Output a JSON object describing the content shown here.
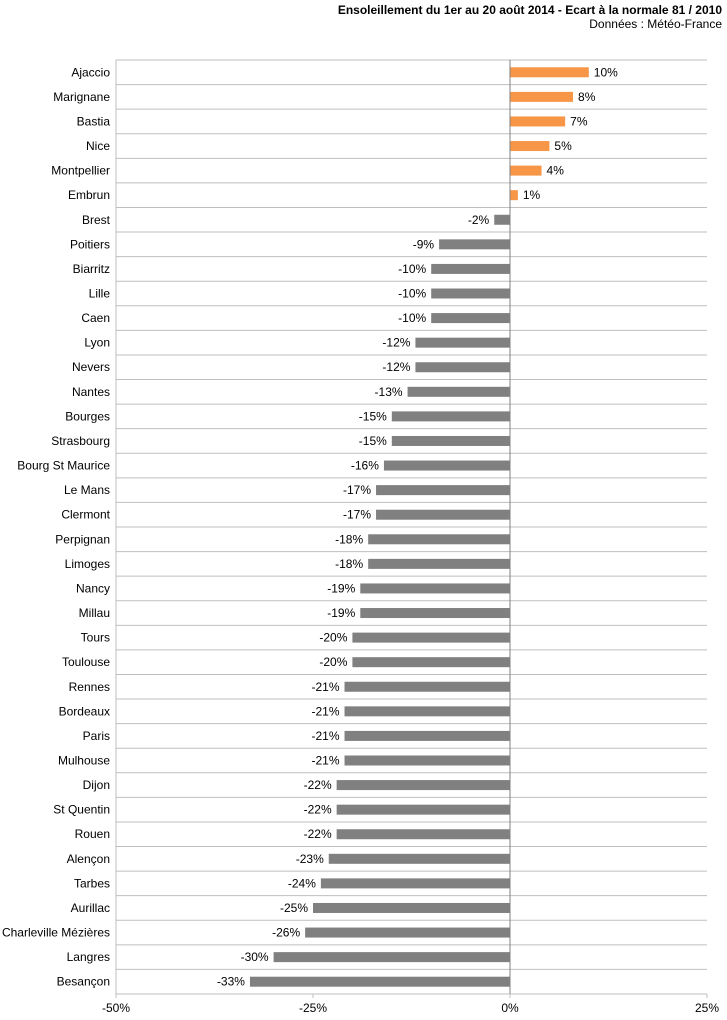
{
  "header": {
    "title": "Ensoleillement  du 1er au 20 août 2014 - Ecart à la normale 81 / 2010",
    "source": "Données : Météo-France"
  },
  "colors": {
    "positive": "#f79646",
    "negative": "#808080",
    "grid": "#bfbfbf",
    "axis": "#808080"
  },
  "chart_data": {
    "type": "bar",
    "orientation": "horizontal",
    "title": "Ensoleillement  du 1er au 20 août 2014 - Ecart à la normale 81 / 2010",
    "xlim": [
      -0.5,
      0.25
    ],
    "xticks": [
      -0.5,
      -0.25,
      0,
      0.25
    ],
    "xtick_labels": [
      "-50%",
      "-25%",
      "0%",
      "25%"
    ],
    "grid": "horizontal lines between categories",
    "categories": [
      "Ajaccio",
      "Marignane",
      "Bastia",
      "Nice",
      "Montpellier",
      "Embrun",
      "Brest",
      "Poitiers",
      "Biarritz",
      "Lille",
      "Caen",
      "Lyon",
      "Nevers",
      "Nantes",
      "Bourges",
      "Strasbourg",
      "Bourg St Maurice",
      "Le Mans",
      "Clermont",
      "Perpignan",
      "Limoges",
      "Nancy",
      "Millau",
      "Tours",
      "Toulouse",
      "Rennes",
      "Bordeaux",
      "Paris",
      "Mulhouse",
      "Dijon",
      "St Quentin",
      "Rouen",
      "Alençon",
      "Tarbes",
      "Aurillac",
      "Charleville Mézières",
      "Langres",
      "Besançon"
    ],
    "values": [
      0.1,
      0.08,
      0.07,
      0.05,
      0.04,
      0.01,
      -0.02,
      -0.09,
      -0.1,
      -0.1,
      -0.1,
      -0.12,
      -0.12,
      -0.13,
      -0.15,
      -0.15,
      -0.16,
      -0.17,
      -0.17,
      -0.18,
      -0.18,
      -0.19,
      -0.19,
      -0.2,
      -0.2,
      -0.21,
      -0.21,
      -0.21,
      -0.21,
      -0.22,
      -0.22,
      -0.22,
      -0.23,
      -0.24,
      -0.25,
      -0.26,
      -0.3,
      -0.33
    ],
    "data_labels": [
      "10%",
      "8%",
      "7%",
      "5%",
      "4%",
      "1%",
      "-2%",
      "-9%",
      "-10%",
      "-10%",
      "-10%",
      "-12%",
      "-12%",
      "-13%",
      "-15%",
      "-15%",
      "-16%",
      "-17%",
      "-17%",
      "-18%",
      "-18%",
      "-19%",
      "-19%",
      "-20%",
      "-20%",
      "-21%",
      "-21%",
      "-21%",
      "-21%",
      "-22%",
      "-22%",
      "-22%",
      "-23%",
      "-24%",
      "-25%",
      "-26%",
      "-30%",
      "-33%"
    ]
  }
}
